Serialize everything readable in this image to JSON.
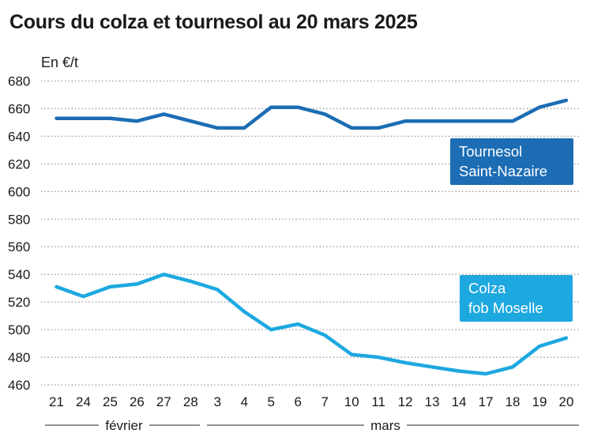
{
  "chart_data": {
    "type": "line",
    "title": "Cours du colza et tournesol au 20 mars 2025",
    "ylabel": "En €/t",
    "ylim": [
      460,
      680
    ],
    "yticks": [
      680,
      660,
      640,
      620,
      600,
      580,
      560,
      540,
      520,
      500,
      480,
      460
    ],
    "grid": true,
    "categories": [
      "21",
      "24",
      "25",
      "26",
      "27",
      "28",
      "3",
      "4",
      "5",
      "6",
      "7",
      "10",
      "11",
      "12",
      "13",
      "14",
      "17",
      "18",
      "19",
      "20"
    ],
    "month_groups": [
      {
        "label": "février",
        "start": 0,
        "end": 5
      },
      {
        "label": "mars",
        "start": 6,
        "end": 19
      }
    ],
    "series": [
      {
        "name": "Tournesol Saint-Nazaire",
        "label_lines": [
          "Tournesol",
          "Saint-Nazaire"
        ],
        "color": "#1c6db4",
        "values": [
          653,
          653,
          653,
          651,
          656,
          651,
          646,
          646,
          661,
          661,
          656,
          646,
          646,
          651,
          651,
          651,
          651,
          651,
          661,
          666
        ]
      },
      {
        "name": "Colza fob Moselle",
        "label_lines": [
          "Colza",
          "fob Moselle"
        ],
        "color": "#1da8e0",
        "values": [
          531,
          524,
          531,
          533,
          540,
          535,
          529,
          513,
          500,
          504,
          496,
          482,
          480,
          476,
          473,
          470,
          468,
          473,
          488,
          494
        ]
      }
    ]
  }
}
